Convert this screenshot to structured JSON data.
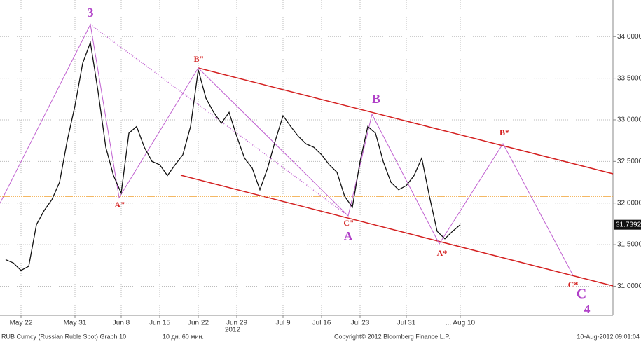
{
  "chart_data": {
    "type": "line",
    "color": "#111111",
    "categories": [
      null,
      null,
      "May 22",
      null,
      null,
      null,
      null,
      null,
      null,
      "May 31",
      null,
      null,
      null,
      null,
      null,
      "Jun 8",
      null,
      null,
      null,
      null,
      "Jun 15",
      null,
      null,
      null,
      null,
      "Jun 22",
      null,
      null,
      null,
      null,
      "Jun 29",
      null,
      null,
      null,
      null,
      null,
      "Jul 9",
      null,
      null,
      null,
      null,
      "Jul 16",
      null,
      null,
      null,
      null,
      "Jul 23",
      null,
      null,
      null,
      null,
      null,
      "Jul 31",
      null,
      null,
      null,
      null,
      null,
      null,
      "... Aug 10",
      null,
      null,
      null,
      null,
      null,
      null,
      null,
      null,
      null,
      null,
      null,
      null,
      null,
      null,
      null,
      null,
      null,
      null,
      null
    ],
    "values": [
      31.32,
      31.28,
      31.19,
      31.24,
      31.74,
      31.91,
      32.04,
      32.25,
      32.75,
      33.17,
      33.68,
      33.93,
      33.34,
      32.67,
      32.33,
      32.12,
      32.84,
      32.92,
      32.67,
      32.5,
      32.46,
      32.33,
      32.46,
      32.58,
      32.92,
      33.6,
      33.26,
      33.09,
      32.96,
      33.09,
      32.8,
      32.54,
      32.42,
      32.16,
      32.42,
      32.75,
      33.05,
      32.92,
      32.8,
      32.71,
      32.67,
      32.58,
      32.46,
      32.37,
      32.08,
      31.95,
      32.5,
      32.92,
      32.84,
      32.5,
      32.25,
      32.16,
      32.21,
      32.33,
      32.54,
      32.08,
      31.66,
      31.57,
      31.66,
      31.7392,
      null,
      null,
      null,
      null,
      null,
      null,
      null,
      null,
      null,
      null,
      null,
      null,
      null,
      null,
      null,
      null,
      null,
      null,
      null
    ],
    "ylim": [
      30.65,
      34.44
    ],
    "yticks": [
      {
        "value": 31,
        "label": "31.0000"
      },
      {
        "value": 31.5,
        "label": "31.5000"
      },
      {
        "value": 32,
        "label": "32.0000"
      },
      {
        "value": 32.5,
        "label": "32.5000"
      },
      {
        "value": 33,
        "label": "33.0000"
      },
      {
        "value": 33.5,
        "label": "33.5000"
      },
      {
        "value": 34,
        "label": "34.0000"
      }
    ],
    "grid": true,
    "year_label": "2012",
    "reference_line": 32.08,
    "reference_color": "#f0a030",
    "annotations": [
      {
        "text": "3",
        "color": "#b040c8"
      },
      {
        "text": "A\"",
        "color": "#d42020"
      },
      {
        "text": "B\"",
        "color": "#d42020"
      },
      {
        "text": "C\"",
        "color": "#d42020"
      },
      {
        "text": "A",
        "color": "#b040c8"
      },
      {
        "text": "B",
        "color": "#b040c8"
      },
      {
        "text": "A*",
        "color": "#d42020"
      },
      {
        "text": "B*",
        "color": "#d42020"
      },
      {
        "text": "C*",
        "color": "#d42020"
      },
      {
        "text": "C",
        "color": "#b040c8"
      },
      {
        "text": "4",
        "color": "#b040c8"
      }
    ]
  },
  "footer": {
    "security": "RUB Curncy (Russian Ruble Spot) Graph 10",
    "period": "10 дн. 60 мин.",
    "copyright": "Copyright© 2012 Bloomberg Finance L.P.",
    "timestamp": "10-Aug-2012 09:01:04"
  }
}
